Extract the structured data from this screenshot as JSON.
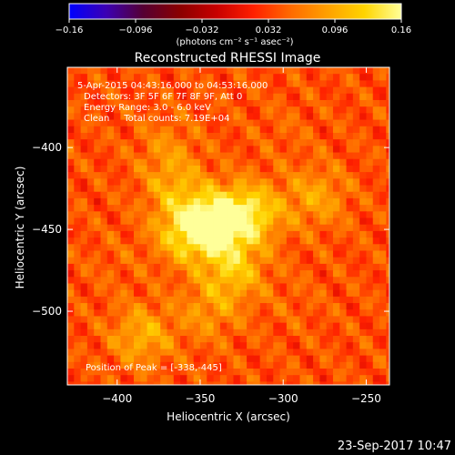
{
  "chart_data": {
    "type": "heatmap",
    "title": "Reconstructed RHESSI Image",
    "xlabel": "Heliocentric X (arcsec)",
    "ylabel": "Heliocentric Y (arcsec)",
    "xlim": [
      -430,
      -236
    ],
    "ylim": [
      -545,
      -351
    ],
    "x_ticks": [
      -400,
      -350,
      -300,
      -250
    ],
    "x_tick_labels": [
      "−400",
      "−350",
      "−300",
      "−250"
    ],
    "y_ticks": [
      -400,
      -450,
      -500
    ],
    "y_tick_labels": [
      "−400",
      "−450",
      "−500"
    ],
    "colorbar": {
      "min": -0.16,
      "max": 0.16,
      "ticks": [
        -0.16,
        -0.096,
        -0.032,
        0.032,
        0.096,
        0.16
      ],
      "tick_labels": [
        "−0.16",
        "−0.096",
        "−0.032",
        "0.032",
        "0.096",
        "0.16"
      ],
      "unit_label": "(photons cm⁻² s⁻¹ asec⁻²)",
      "colors": [
        "#0000ff",
        "#3c00b4",
        "#550033",
        "#8a0000",
        "#c80000",
        "#ff2000",
        "#ff6a00",
        "#ffa000",
        "#ffd400",
        "#ffff99"
      ]
    },
    "annotations": [
      "5-Apr-2015 04:43:16.000 to 04:53:16.000",
      "Detectors: 3F 5F 6F 7F 8F 9F, Att 0",
      "Energy Range: 3.0 - 6.0 keV",
      "Clean     Total counts: 7.19E+04",
      "Position of Peak = [-338,-445]"
    ],
    "peak": [
      -338,
      -445
    ],
    "sources": [
      {
        "x": -338,
        "y": -445,
        "value": 0.16
      },
      {
        "x": -358,
        "y": -452,
        "value": 0.13
      },
      {
        "x": -318,
        "y": -440,
        "value": 0.12
      },
      {
        "x": -330,
        "y": -475,
        "value": 0.11
      },
      {
        "x": -365,
        "y": -425,
        "value": 0.09
      },
      {
        "x": -385,
        "y": -515,
        "value": 0.1
      },
      {
        "x": -280,
        "y": -430,
        "value": 0.09
      },
      {
        "x": -370,
        "y": -400,
        "value": 0.07
      },
      {
        "x": -345,
        "y": -500,
        "value": 0.08
      },
      {
        "x": -400,
        "y": -470,
        "value": 0.05
      },
      {
        "x": -300,
        "y": -390,
        "value": 0.05
      },
      {
        "x": -295,
        "y": -495,
        "value": 0.05
      }
    ],
    "background_level": 0.04,
    "grid": false
  },
  "footer": {
    "timestamp": "23-Sep-2017 10:47"
  }
}
